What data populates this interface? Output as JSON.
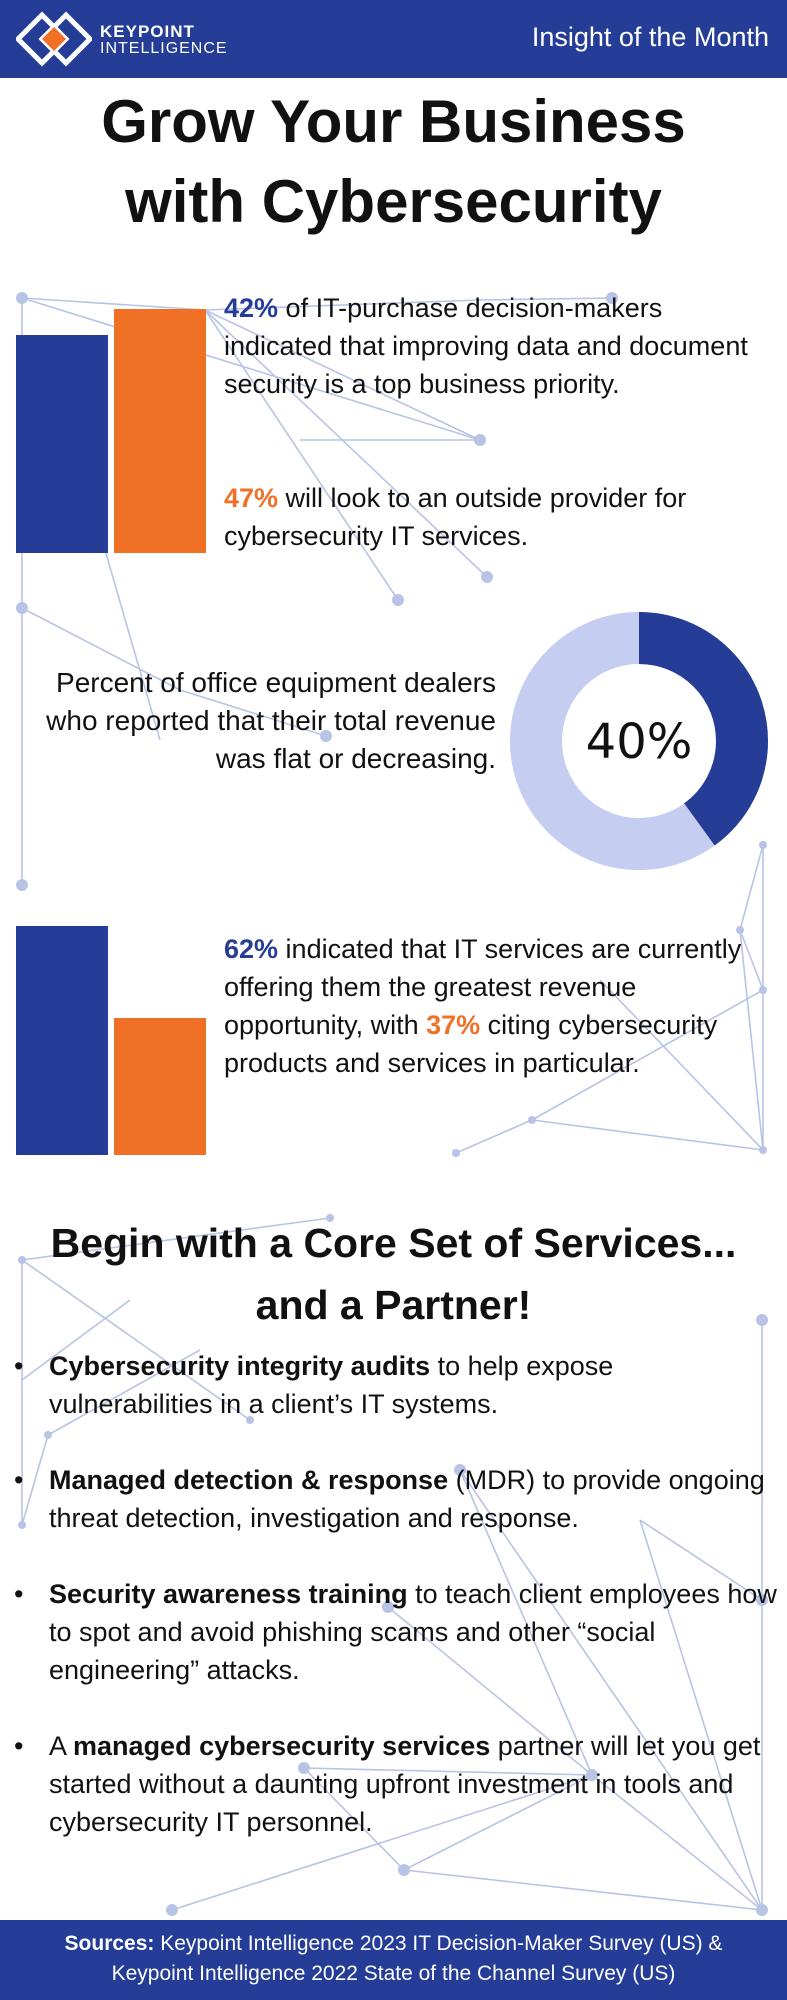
{
  "header": {
    "logo_line1": "KEYPOINT",
    "logo_line2": "INTELLIGENCE",
    "right_title": "Insight of the Month"
  },
  "title": {
    "line1": "Grow Your Business",
    "line2": "with Cybersecurity"
  },
  "stats": {
    "s1": {
      "value": "42%",
      "text": " of IT-purchase decision-makers indicated that improving data and document security is a top business priority."
    },
    "s2": {
      "value": "47%",
      "text": " will look to an outside provider for cybersecurity IT services."
    },
    "donut": {
      "text": "Percent of office equipment dealers who reported that their total revenue was flat or decreasing.",
      "label": "40%",
      "fraction": 0.4
    },
    "s3": {
      "value_a": "62%",
      "text_a": " indicated that IT services are currently offering them the greatest revenue opportunity, with ",
      "value_b": "37%",
      "text_b": " citing cybersecurity products and services in particular."
    }
  },
  "bars": {
    "top_blue": 42,
    "top_orange": 47,
    "bottom_blue": 62,
    "bottom_orange": 37
  },
  "section2": {
    "heading_line1": "Begin with a Core Set of Services...",
    "heading_line2": "and a Partner!",
    "bullets": [
      {
        "pre": "",
        "bold": "Cybersecurity integrity audits",
        "post": " to help expose vulnerabilities in a client’s IT systems."
      },
      {
        "pre": "",
        "bold": "Managed detection & response",
        "post": " (MDR) to provide ongoing threat detection, investigation and response."
      },
      {
        "pre": "",
        "bold": "Security awareness training",
        "post": " to teach client employees how to spot and avoid phishing scams and other “social engineering” attacks."
      },
      {
        "pre": "A ",
        "bold": "managed cybersecurity services",
        "post": " partner will let you get started without a daunting upfront investment in tools and cybersecurity IT personnel."
      }
    ]
  },
  "footer": {
    "label": "Sources:",
    "line1": " Keypoint Intelligence 2023 IT Decision-Maker Survey (US) &",
    "line2": "Keypoint Intelligence 2022 State of the Channel Survey (US)"
  },
  "colors": {
    "brand_blue": "#253d96",
    "accent_orange": "#f07026",
    "light_blue": "#c5cdf0",
    "network": "#b8c3e6"
  }
}
